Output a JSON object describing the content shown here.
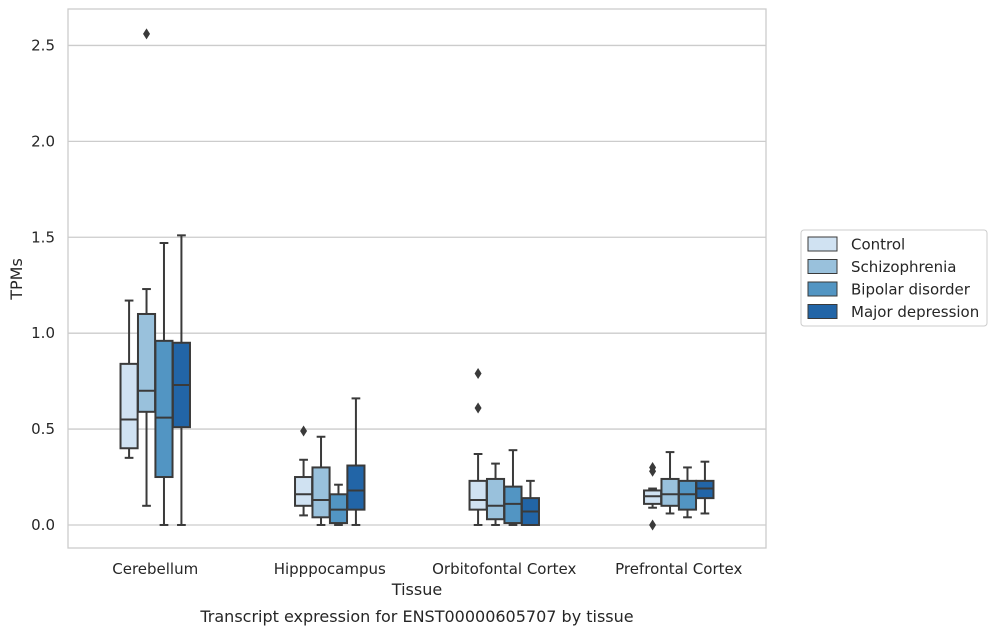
{
  "chart_data": {
    "type": "box",
    "caption": "Transcript expression for ENST00000605707 by tissue",
    "xlabel": "Tissue",
    "ylabel": "TPMs",
    "ylim": [
      -0.12,
      2.69
    ],
    "yticks": [
      0.0,
      0.5,
      1.0,
      1.5,
      2.0,
      2.5
    ],
    "ytick_labels": [
      "0.0",
      "0.5",
      "1.0",
      "1.5",
      "2.0",
      "2.5"
    ],
    "grid": "horizontal",
    "legend_position": "right",
    "categories": [
      "Cerebellum",
      "Hipppocampus",
      "Orbitofontal Cortex",
      "Prefrontal Cortex"
    ],
    "series": [
      {
        "name": "Control",
        "color": "#d0e2f2",
        "boxes": [
          {
            "whisker_low": 0.35,
            "q1": 0.4,
            "median": 0.55,
            "q3": 0.84,
            "whisker_high": 1.17,
            "outliers": []
          },
          {
            "whisker_low": 0.05,
            "q1": 0.1,
            "median": 0.16,
            "q3": 0.25,
            "whisker_high": 0.34,
            "outliers": [
              0.49
            ]
          },
          {
            "whisker_low": 0.0,
            "q1": 0.08,
            "median": 0.13,
            "q3": 0.23,
            "whisker_high": 0.37,
            "outliers": [
              0.61,
              0.79
            ]
          },
          {
            "whisker_low": 0.09,
            "q1": 0.11,
            "median": 0.15,
            "q3": 0.18,
            "whisker_high": 0.19,
            "outliers": [
              0.0,
              0.28,
              0.3
            ]
          }
        ]
      },
      {
        "name": "Schizophrenia",
        "color": "#99c1dc",
        "boxes": [
          {
            "whisker_low": 0.1,
            "q1": 0.59,
            "median": 0.7,
            "q3": 1.1,
            "whisker_high": 1.23,
            "outliers": [
              2.56
            ]
          },
          {
            "whisker_low": 0.0,
            "q1": 0.04,
            "median": 0.13,
            "q3": 0.3,
            "whisker_high": 0.46,
            "outliers": []
          },
          {
            "whisker_low": 0.0,
            "q1": 0.03,
            "median": 0.1,
            "q3": 0.24,
            "whisker_high": 0.32,
            "outliers": []
          },
          {
            "whisker_low": 0.06,
            "q1": 0.1,
            "median": 0.16,
            "q3": 0.24,
            "whisker_high": 0.38,
            "outliers": []
          }
        ]
      },
      {
        "name": "Bipolar disorder",
        "color": "#5295c3",
        "boxes": [
          {
            "whisker_low": 0.0,
            "q1": 0.25,
            "median": 0.56,
            "q3": 0.96,
            "whisker_high": 1.47,
            "outliers": []
          },
          {
            "whisker_low": 0.0,
            "q1": 0.01,
            "median": 0.08,
            "q3": 0.16,
            "whisker_high": 0.21,
            "outliers": []
          },
          {
            "whisker_low": 0.0,
            "q1": 0.01,
            "median": 0.11,
            "q3": 0.2,
            "whisker_high": 0.39,
            "outliers": []
          },
          {
            "whisker_low": 0.04,
            "q1": 0.08,
            "median": 0.16,
            "q3": 0.23,
            "whisker_high": 0.3,
            "outliers": []
          }
        ]
      },
      {
        "name": "Major depression",
        "color": "#2265a7",
        "boxes": [
          {
            "whisker_low": 0.0,
            "q1": 0.51,
            "median": 0.73,
            "q3": 0.95,
            "whisker_high": 1.51,
            "outliers": []
          },
          {
            "whisker_low": 0.0,
            "q1": 0.08,
            "median": 0.18,
            "q3": 0.31,
            "whisker_high": 0.66,
            "outliers": []
          },
          {
            "whisker_low": 0.0,
            "q1": 0.0,
            "median": 0.07,
            "q3": 0.14,
            "whisker_high": 0.23,
            "outliers": []
          },
          {
            "whisker_low": 0.06,
            "q1": 0.14,
            "median": 0.19,
            "q3": 0.23,
            "whisker_high": 0.33,
            "outliers": []
          }
        ]
      }
    ]
  }
}
